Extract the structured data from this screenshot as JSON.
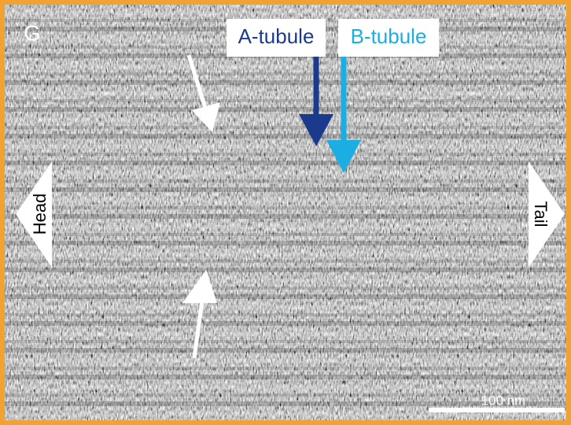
{
  "panel_label": "G",
  "annotations": {
    "a_tubule": "A-tubule",
    "b_tubule": "B-tubule",
    "head": "Head",
    "tail": "Tail"
  },
  "scale_bar": "100 nm"
}
